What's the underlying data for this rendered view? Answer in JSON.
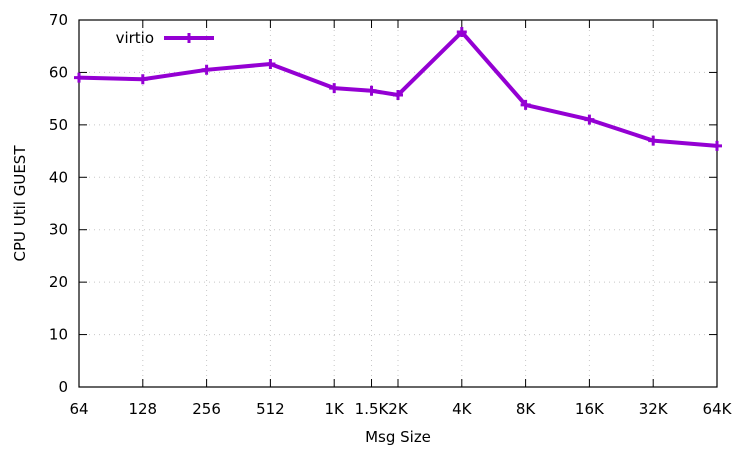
{
  "chart_data": {
    "type": "line",
    "title": "",
    "xlabel": "Msg Size",
    "ylabel": "CPU Util GUEST",
    "x_scale": "log2",
    "x": [
      64,
      128,
      256,
      512,
      1024,
      1536,
      2048,
      4096,
      8192,
      16384,
      32768,
      65536
    ],
    "x_tick_labels": [
      "64",
      "128",
      "256",
      "512",
      "1K",
      "1.5K",
      "2K",
      "4K",
      "8K",
      "16K",
      "32K",
      "64K"
    ],
    "xlim": [
      64,
      65536
    ],
    "ylim": [
      0,
      70
    ],
    "y_ticks": [
      0,
      10,
      20,
      30,
      40,
      50,
      60,
      70
    ],
    "grid": true,
    "legend_position": "top-left",
    "series": [
      {
        "name": "virtio",
        "color": "#9400d3",
        "marker": "plus",
        "values": [
          59.0,
          58.7,
          60.5,
          61.6,
          57.0,
          56.5,
          55.7,
          67.7,
          53.8,
          51.0,
          47.0,
          46.0
        ]
      }
    ]
  }
}
